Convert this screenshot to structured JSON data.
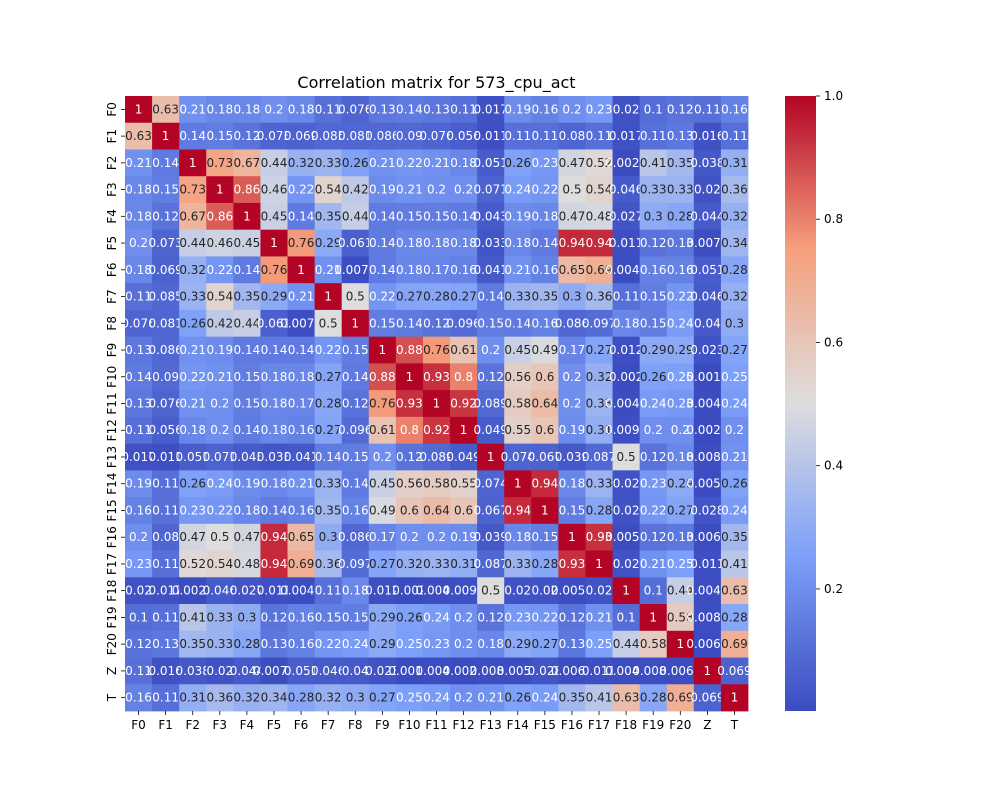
{
  "chart_data": {
    "type": "heatmap",
    "title": "Correlation matrix for 573_cpu_act",
    "xlabel": "",
    "ylabel": "",
    "labels": [
      "F0",
      "F1",
      "F2",
      "F3",
      "F4",
      "F5",
      "F6",
      "F7",
      "F8",
      "F9",
      "F10",
      "F11",
      "F12",
      "F13",
      "F14",
      "F15",
      "F16",
      "F17",
      "F18",
      "F19",
      "F20",
      "Z",
      "T"
    ],
    "cell_text": [
      [
        "1",
        "0.63",
        "0.21",
        "0.18",
        "0.18",
        "0.2",
        "0.18",
        "0.11",
        "0.076",
        "0.13",
        "0.14",
        "0.13",
        "0.11",
        "0.017",
        "0.19",
        "0.16",
        "0.2",
        "0.23",
        "0.02",
        "0.1",
        "0.12",
        "0.11",
        "0.16"
      ],
      [
        "0.63",
        "1",
        "0.14",
        "0.15",
        "0.12",
        "0.073",
        "0.069",
        "0.085",
        "0.081",
        "0.086",
        "0.09",
        "0.076",
        "0.056",
        "0.011",
        "0.11",
        "0.11",
        "0.08",
        "0.11",
        "0.017",
        "0.11",
        "0.13",
        "0.016",
        "0.11"
      ],
      [
        "0.21",
        "0.14",
        "1",
        "0.73",
        "0.67",
        "0.44",
        "0.32",
        "0.33",
        "0.26",
        "0.21",
        "0.22",
        "0.21",
        "0.18",
        "0.051",
        "0.26",
        "0.23",
        "0.47",
        "0.52",
        "0.0028",
        "0.41",
        "0.35",
        "0.038",
        "0.31"
      ],
      [
        "0.18",
        "0.15",
        "0.73",
        "1",
        "0.86",
        "0.46",
        "0.22",
        "0.54",
        "0.42",
        "0.19",
        "0.21",
        "0.2",
        "0.2",
        "0.071",
        "0.24",
        "0.22",
        "0.5",
        "0.54",
        "0.046",
        "0.33",
        "0.33",
        "0.02",
        "0.36"
      ],
      [
        "0.18",
        "0.12",
        "0.67",
        "0.86",
        "1",
        "0.45",
        "0.14",
        "0.35",
        "0.44",
        "0.14",
        "0.15",
        "0.15",
        "0.14",
        "0.043",
        "0.19",
        "0.18",
        "0.47",
        "0.48",
        "0.027",
        "0.3",
        "0.28",
        "0.044",
        "0.32"
      ],
      [
        "0.2",
        "0.073",
        "0.44",
        "0.46",
        "0.45",
        "1",
        "0.76",
        "0.29",
        "0.061",
        "0.14",
        "0.18",
        "0.18",
        "0.18",
        "0.033",
        "0.18",
        "0.14",
        "0.94",
        "0.94",
        "0.011",
        "0.12",
        "0.13",
        "0.0079",
        "0.34"
      ],
      [
        "0.18",
        "0.069",
        "0.32",
        "0.22",
        "0.14",
        "0.76",
        "1",
        "0.21",
        "0.0071",
        "0.14",
        "0.18",
        "0.17",
        "0.16",
        "0.041",
        "0.21",
        "0.16",
        "0.65",
        "0.69",
        "0.0042",
        "0.16",
        "0.16",
        "0.051",
        "0.28"
      ],
      [
        "0.11",
        "0.085",
        "0.33",
        "0.54",
        "0.35",
        "0.29",
        "0.21",
        "1",
        "0.5",
        "0.22",
        "0.27",
        "0.28",
        "0.27",
        "0.14",
        "0.33",
        "0.35",
        "0.3",
        "0.36",
        "0.11",
        "0.15",
        "0.22",
        "0.046",
        "0.32"
      ],
      [
        "0.076",
        "0.081",
        "0.26",
        "0.42",
        "0.44",
        "0.061",
        "0.0071",
        "0.5",
        "1",
        "0.15",
        "0.14",
        "0.12",
        "0.096",
        "0.15",
        "0.14",
        "0.16",
        "0.086",
        "0.097",
        "0.18",
        "0.15",
        "0.24",
        "0.04",
        "0.3"
      ],
      [
        "0.13",
        "0.086",
        "0.21",
        "0.19",
        "0.14",
        "0.14",
        "0.14",
        "0.22",
        "0.15",
        "1",
        "0.88",
        "0.76",
        "0.61",
        "0.2",
        "0.45",
        "0.49",
        "0.17",
        "0.27",
        "0.012",
        "0.29",
        "0.29",
        "0.023",
        "0.27"
      ],
      [
        "0.14",
        "0.09",
        "0.22",
        "0.21",
        "0.15",
        "0.18",
        "0.18",
        "0.27",
        "0.14",
        "0.88",
        "1",
        "0.93",
        "0.8",
        "0.12",
        "0.56",
        "0.6",
        "0.2",
        "0.32",
        "0.002",
        "0.26",
        "0.25",
        "0.0019",
        "0.25"
      ],
      [
        "0.13",
        "0.076",
        "0.21",
        "0.2",
        "0.15",
        "0.18",
        "0.17",
        "0.28",
        "0.12",
        "0.76",
        "0.93",
        "1",
        "0.92",
        "0.089",
        "0.58",
        "0.64",
        "0.2",
        "0.33",
        "0.0045",
        "0.24",
        "0.23",
        "0.0041",
        "0.24"
      ],
      [
        "0.11",
        "0.056",
        "0.18",
        "0.2",
        "0.14",
        "0.18",
        "0.16",
        "0.27",
        "0.096",
        "0.61",
        "0.8",
        "0.92",
        "1",
        "0.049",
        "0.55",
        "0.6",
        "0.19",
        "0.31",
        "0.0096",
        "0.2",
        "0.2",
        "0.0024",
        "0.2"
      ],
      [
        "0.017",
        "0.011",
        "0.051",
        "0.071",
        "0.043",
        "0.033",
        "0.041",
        "0.14",
        "0.15",
        "0.2",
        "0.12",
        "0.089",
        "0.049",
        "1",
        "0.074",
        "0.067",
        "0.039",
        "0.087",
        "0.5",
        "0.12",
        "0.18",
        "0.0085",
        "0.21"
      ],
      [
        "0.19",
        "0.11",
        "0.26",
        "0.24",
        "0.19",
        "0.18",
        "0.21",
        "0.33",
        "0.14",
        "0.45",
        "0.56",
        "0.58",
        "0.55",
        "0.074",
        "1",
        "0.94",
        "0.18",
        "0.33",
        "0.02",
        "0.23",
        "0.29",
        "0.0059",
        "0.26"
      ],
      [
        "0.16",
        "0.11",
        "0.23",
        "0.22",
        "0.18",
        "0.14",
        "0.16",
        "0.35",
        "0.16",
        "0.49",
        "0.6",
        "0.64",
        "0.6",
        "0.067",
        "0.94",
        "1",
        "0.15",
        "0.28",
        "0.02",
        "0.22",
        "0.27",
        "0.028",
        "0.24"
      ],
      [
        "0.2",
        "0.08",
        "0.47",
        "0.5",
        "0.47",
        "0.94",
        "0.65",
        "0.3",
        "0.086",
        "0.17",
        "0.2",
        "0.2",
        "0.19",
        "0.039",
        "0.18",
        "0.15",
        "1",
        "0.93",
        "0.0058",
        "0.12",
        "0.13",
        "0.0061",
        "0.35"
      ],
      [
        "0.23",
        "0.11",
        "0.52",
        "0.54",
        "0.48",
        "0.94",
        "0.69",
        "0.36",
        "0.097",
        "0.27",
        "0.32",
        "0.33",
        "0.31",
        "0.087",
        "0.33",
        "0.28",
        "0.93",
        "1",
        "0.02",
        "0.21",
        "0.25",
        "0.011",
        "0.41"
      ],
      [
        "0.02",
        "0.017",
        "0.0028",
        "0.046",
        "0.027",
        "0.011",
        "0.0042",
        "0.11",
        "0.18",
        "0.012",
        "0.002",
        "0.0045",
        "0.0096",
        "0.5",
        "0.02",
        "0.02",
        "0.0058",
        "0.02",
        "1",
        "0.1",
        "0.44",
        "0.0047",
        "0.63"
      ],
      [
        "0.1",
        "0.11",
        "0.41",
        "0.33",
        "0.3",
        "0.12",
        "0.16",
        "0.15",
        "0.15",
        "0.29",
        "0.26",
        "0.24",
        "0.2",
        "0.12",
        "0.23",
        "0.22",
        "0.12",
        "0.21",
        "0.1",
        "1",
        "0.58",
        "0.0088",
        "0.28"
      ],
      [
        "0.12",
        "0.13",
        "0.35",
        "0.33",
        "0.28",
        "0.13",
        "0.16",
        "0.22",
        "0.24",
        "0.29",
        "0.25",
        "0.23",
        "0.2",
        "0.18",
        "0.29",
        "0.27",
        "0.13",
        "0.25",
        "0.44",
        "0.58",
        "1",
        "0.0063",
        "0.69"
      ],
      [
        "0.11",
        "0.016",
        "0.038",
        "0.02",
        "0.044",
        "0.0079",
        "0.051",
        "0.046",
        "0.04",
        "0.023",
        "0.0019",
        "0.0041",
        "0.0024",
        "0.0085",
        "0.0059",
        "0.028",
        "0.0061",
        "0.011",
        "0.0047",
        "0.0088",
        "0.0063",
        "1",
        "0.069"
      ],
      [
        "0.16",
        "0.11",
        "0.31",
        "0.36",
        "0.32",
        "0.34",
        "0.28",
        "0.32",
        "0.3",
        "0.27",
        "0.25",
        "0.24",
        "0.2",
        "0.21",
        "0.26",
        "0.24",
        "0.35",
        "0.41",
        "0.63",
        "0.28",
        "0.69",
        "0.069",
        "1"
      ]
    ],
    "colorbar": {
      "min": 0.0019,
      "max": 1.0,
      "ticks": [
        0.2,
        0.4,
        0.6,
        0.8,
        1.0
      ],
      "tick_labels": [
        "0.2",
        "0.4",
        "0.6",
        "0.8",
        "1.0"
      ],
      "colormap": "coolwarm"
    }
  }
}
